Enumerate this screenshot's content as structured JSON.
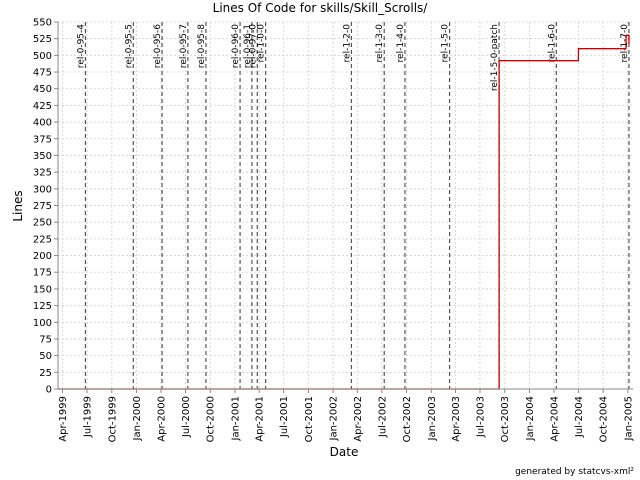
{
  "chart_data": {
    "type": "line",
    "title": "Lines Of Code for skills/Skill_Scrolls/",
    "xlabel": "Date",
    "ylabel": "Lines",
    "ylim": [
      0,
      550
    ],
    "yticks": [
      0,
      25,
      50,
      75,
      100,
      125,
      150,
      175,
      200,
      225,
      250,
      275,
      300,
      325,
      350,
      375,
      400,
      425,
      450,
      475,
      500,
      525,
      550
    ],
    "xlim": [
      "1999-03-15",
      "2005-01-20"
    ],
    "xticks": [
      {
        "date": "1999-04-01",
        "label": "Apr-1999"
      },
      {
        "date": "1999-07-01",
        "label": "Jul-1999"
      },
      {
        "date": "1999-10-01",
        "label": "Oct-1999"
      },
      {
        "date": "2000-01-01",
        "label": "Jan-2000"
      },
      {
        "date": "2000-04-01",
        "label": "Apr-2000"
      },
      {
        "date": "2000-07-01",
        "label": "Jul-2000"
      },
      {
        "date": "2000-10-01",
        "label": "Oct-2000"
      },
      {
        "date": "2001-01-01",
        "label": "Jan-2001"
      },
      {
        "date": "2001-04-01",
        "label": "Apr-2001"
      },
      {
        "date": "2001-07-01",
        "label": "Jul-2001"
      },
      {
        "date": "2001-10-01",
        "label": "Oct-2001"
      },
      {
        "date": "2002-01-01",
        "label": "Jan-2002"
      },
      {
        "date": "2002-04-01",
        "label": "Apr-2002"
      },
      {
        "date": "2002-07-01",
        "label": "Jul-2002"
      },
      {
        "date": "2002-10-01",
        "label": "Oct-2002"
      },
      {
        "date": "2003-01-01",
        "label": "Jan-2003"
      },
      {
        "date": "2003-04-01",
        "label": "Apr-2003"
      },
      {
        "date": "2003-07-01",
        "label": "Jul-2003"
      },
      {
        "date": "2003-10-01",
        "label": "Oct-2003"
      },
      {
        "date": "2004-01-01",
        "label": "Jan-2004"
      },
      {
        "date": "2004-04-01",
        "label": "Apr-2004"
      },
      {
        "date": "2004-07-01",
        "label": "Jul-2004"
      },
      {
        "date": "2004-10-01",
        "label": "Oct-2004"
      },
      {
        "date": "2005-01-01",
        "label": "Jan-2005"
      }
    ],
    "series": [
      {
        "color": "#cc0000",
        "step": true,
        "points": [
          {
            "x": "1999-03-15",
            "y": 0
          },
          {
            "x": "2003-09-10",
            "y": 0
          },
          {
            "x": "2003-09-10",
            "y": 492
          },
          {
            "x": "2004-07-01",
            "y": 492
          },
          {
            "x": "2004-07-01",
            "y": 510
          },
          {
            "x": "2004-12-25",
            "y": 510
          },
          {
            "x": "2004-12-25",
            "y": 530
          },
          {
            "x": "2005-01-05",
            "y": 530
          },
          {
            "x": "2005-01-05",
            "y": 518
          }
        ]
      }
    ],
    "tags": [
      {
        "date": "1999-06-25",
        "label": "rel-0-95-4"
      },
      {
        "date": "1999-12-20",
        "label": "rel-0-95-5"
      },
      {
        "date": "2000-04-05",
        "label": "rel-0-95-6"
      },
      {
        "date": "2000-07-10",
        "label": "rel-0-95-7"
      },
      {
        "date": "2000-09-15",
        "label": "rel-0-95-8"
      },
      {
        "date": "2001-01-20",
        "label": "rel-0-96-0"
      },
      {
        "date": "2001-03-05",
        "label": "rel-0-96-1"
      },
      {
        "date": "2001-03-25",
        "label": "rel-0-97-0"
      },
      {
        "date": "2001-04-25",
        "label": "rel-1-0-0"
      },
      {
        "date": "2002-03-10",
        "label": "rel-1-2-0"
      },
      {
        "date": "2002-07-10",
        "label": "rel-1-3-0"
      },
      {
        "date": "2002-09-25",
        "label": "rel-1-4-0"
      },
      {
        "date": "2003-03-10",
        "label": "rel-1-5-0"
      },
      {
        "date": "2003-09-10",
        "label": "rel-1-5-0-patch"
      },
      {
        "date": "2004-04-10",
        "label": "rel-1-6-0"
      },
      {
        "date": "2005-01-05",
        "label": "rel-1-7-0"
      }
    ],
    "grid": true,
    "colors": {
      "series": "#cc0000",
      "grid": "#d8d8d8",
      "tag_line": "#555555"
    }
  },
  "footer": {
    "credit": "generated by statcvs-xml²"
  }
}
